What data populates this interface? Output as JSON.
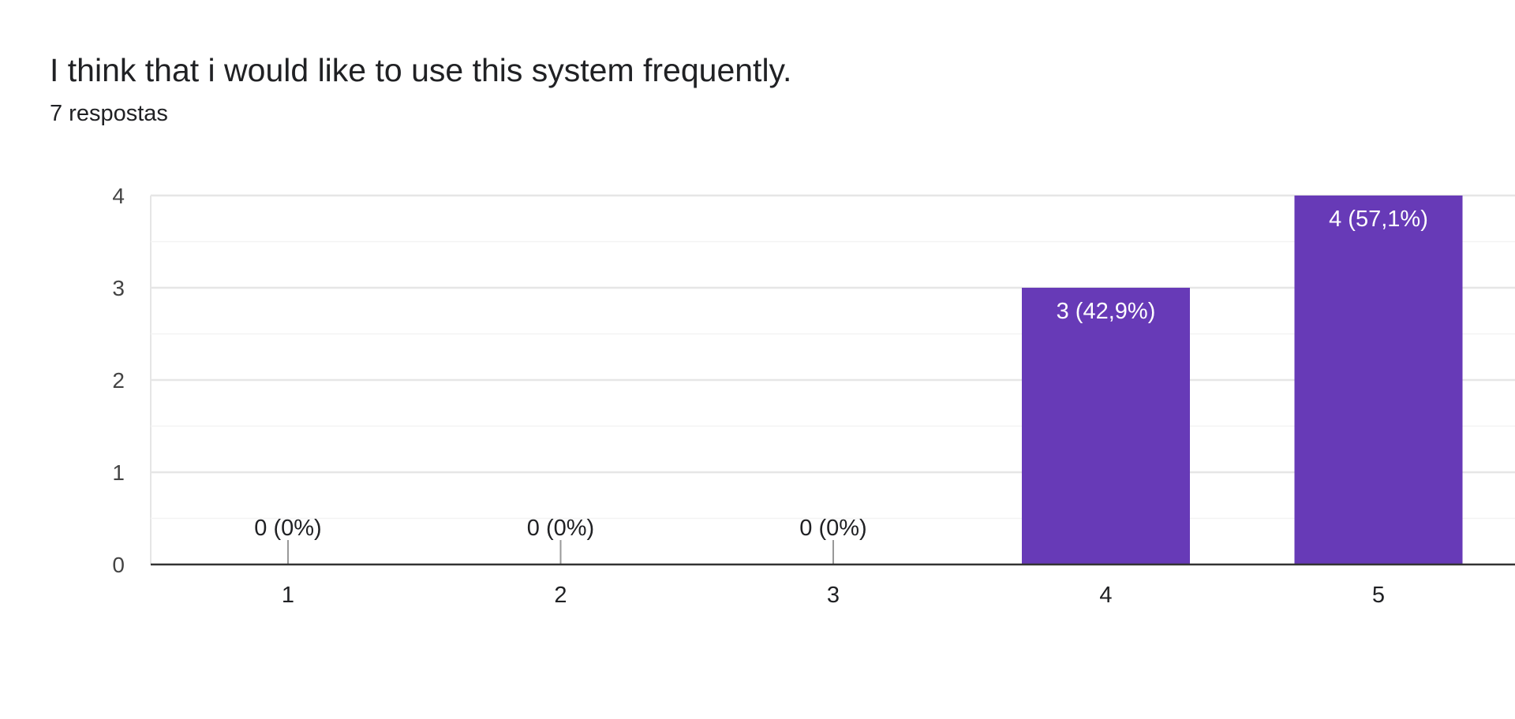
{
  "question": {
    "title": "I think that i would like to use this system frequently.",
    "responses_label": "7 respostas"
  },
  "colors": {
    "bar": "#673ab7",
    "text": "#202124",
    "axis_text": "#444444",
    "grid_major": "#e6e6e6",
    "grid_minor": "#f3f3f3",
    "baseline": "#333333",
    "zero_stub": "#999999",
    "bar_label_inside": "#ffffff"
  },
  "chart_data": {
    "type": "bar",
    "categories": [
      "1",
      "2",
      "3",
      "4",
      "5"
    ],
    "values": [
      0,
      0,
      0,
      3,
      4
    ],
    "data_labels": [
      "0 (0%)",
      "0 (0%)",
      "0 (0%)",
      "3 (42,9%)",
      "4 (57,1%)"
    ],
    "title": "I think that i would like to use this system frequently.",
    "subtitle": "7 respostas",
    "xlabel": "",
    "ylabel": "",
    "ylim": [
      0,
      4
    ],
    "yticks": [
      0,
      1,
      2,
      3,
      4
    ],
    "grid": true,
    "legend": "none"
  }
}
